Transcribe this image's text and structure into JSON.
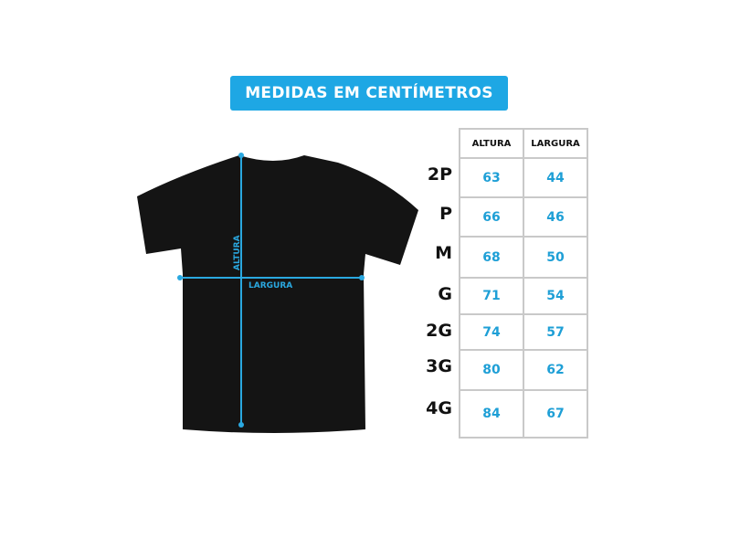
{
  "title": "MEDIDAS EM CENTÍMETROS",
  "colors": {
    "accent": "#1ea7e4",
    "value_text": "#1e9fd6",
    "shirt": "#141414"
  },
  "diagram": {
    "height_label": "ALTURA",
    "width_label": "LARGURA"
  },
  "table": {
    "headers": [
      "ALTURA",
      "LARGURA"
    ],
    "rows": [
      {
        "size": "2P",
        "altura": "63",
        "largura": "44"
      },
      {
        "size": "P",
        "altura": "66",
        "largura": "46"
      },
      {
        "size": "M",
        "altura": "68",
        "largura": "50"
      },
      {
        "size": "G",
        "altura": "71",
        "largura": "54"
      },
      {
        "size": "2G",
        "altura": "74",
        "largura": "57"
      },
      {
        "size": "3G",
        "altura": "80",
        "largura": "62"
      },
      {
        "size": "4G",
        "altura": "84",
        "largura": "67"
      }
    ]
  }
}
